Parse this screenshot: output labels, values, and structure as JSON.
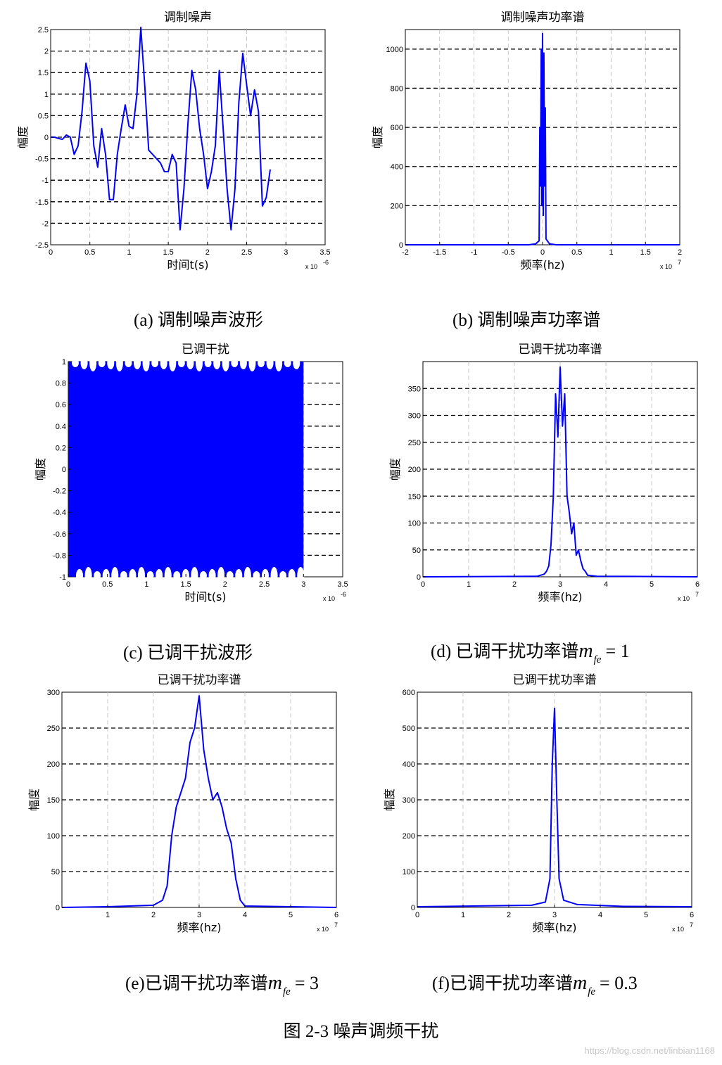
{
  "chart_data": [
    {
      "id": "a",
      "type": "line",
      "title": "调制噪声",
      "xlabel": "时间t(s)",
      "ylabel": "幅度",
      "x_exponent_label": "x 10",
      "x_exponent_power": "-6",
      "xlim": [
        0,
        3.5
      ],
      "ylim": [
        -2.5,
        2.5
      ],
      "xticks": [
        0,
        0.5,
        1,
        1.5,
        2,
        2.5,
        3,
        3.5
      ],
      "yticks": [
        -2.5,
        -2,
        -1.5,
        -1,
        -0.5,
        0,
        0.5,
        1,
        1.5,
        2,
        2.5
      ],
      "grid": true,
      "series": [
        {
          "color": "#0000ff",
          "x": [
            0,
            0.05,
            0.1,
            0.15,
            0.2,
            0.25,
            0.3,
            0.35,
            0.4,
            0.45,
            0.5,
            0.55,
            0.6,
            0.65,
            0.7,
            0.75,
            0.8,
            0.85,
            0.9,
            0.95,
            1.0,
            1.05,
            1.1,
            1.15,
            1.2,
            1.25,
            1.3,
            1.35,
            1.4,
            1.45,
            1.5,
            1.55,
            1.6,
            1.65,
            1.7,
            1.75,
            1.8,
            1.85,
            1.9,
            1.95,
            2.0,
            2.05,
            2.1,
            2.15,
            2.2,
            2.25,
            2.3,
            2.35,
            2.4,
            2.45,
            2.5,
            2.55,
            2.6,
            2.65,
            2.7,
            2.75,
            2.8,
            2.85,
            2.9,
            2.95,
            3.0
          ],
          "y": [
            0,
            0,
            -0.03,
            -0.05,
            0.05,
            0.0,
            -0.4,
            -0.2,
            0.6,
            1.72,
            1.3,
            -0.2,
            -0.7,
            0.2,
            -0.4,
            -1.45,
            -1.45,
            -0.4,
            0.2,
            0.75,
            0.25,
            0.2,
            1.0,
            2.55,
            1.2,
            -0.3,
            -0.4,
            -0.5,
            -0.6,
            -0.8,
            -0.8,
            -0.4,
            -0.6,
            -2.15,
            -1.2,
            0.3,
            1.55,
            1.1,
            0.2,
            -0.4,
            -1.2,
            -0.8,
            -0.2,
            1.55,
            0.2,
            -1.2,
            -2.15,
            -1.2,
            0.8,
            1.95,
            1.2,
            0.5,
            1.1,
            0.6,
            -1.6,
            -1.4,
            -0.75,
            null,
            null,
            null,
            null
          ]
        }
      ]
    },
    {
      "id": "b",
      "type": "line",
      "title": "调制噪声功率谱",
      "xlabel": "频率(hz)",
      "ylabel": "幅度",
      "x_exponent_label": "x 10",
      "x_exponent_power": "7",
      "xlim": [
        -2,
        2
      ],
      "ylim": [
        0,
        1100
      ],
      "xticks": [
        -2,
        -1.5,
        -1,
        -0.5,
        0,
        0.5,
        1,
        1.5,
        2
      ],
      "yticks": [
        0,
        200,
        400,
        600,
        800,
        1000
      ],
      "grid": true,
      "series": [
        {
          "color": "#0000ff",
          "x": [
            -2,
            -0.2,
            -0.1,
            -0.05,
            -0.04,
            -0.03,
            -0.02,
            -0.01,
            0,
            0.01,
            0.02,
            0.03,
            0.04,
            0.05,
            0.1,
            0.2,
            2
          ],
          "y": [
            0,
            0,
            5,
            20,
            600,
            300,
            1000,
            200,
            1080,
            150,
            980,
            300,
            700,
            30,
            5,
            0,
            0
          ]
        }
      ]
    },
    {
      "id": "c",
      "type": "area",
      "title": "已调干扰",
      "xlabel": "时间t(s)",
      "ylabel": "幅度",
      "x_exponent_label": "x 10",
      "x_exponent_power": "-6",
      "xlim": [
        0,
        3.5
      ],
      "ylim": [
        -1,
        1
      ],
      "xticks": [
        0,
        0.5,
        1,
        1.5,
        2,
        2.5,
        3,
        3.5
      ],
      "yticks": [
        -1,
        -0.8,
        -0.6,
        -0.4,
        -0.2,
        0,
        0.2,
        0.4,
        0.6,
        0.8,
        1
      ],
      "grid": true,
      "series": [
        {
          "color": "#0000ff",
          "x": [
            0,
            3
          ],
          "y_max": [
            1,
            1
          ],
          "y_min": [
            -1,
            -1
          ]
        }
      ]
    },
    {
      "id": "d",
      "type": "line",
      "title": "已调干扰功率谱",
      "xlabel": "频率(hz)",
      "ylabel": "幅度",
      "x_exponent_label": "x 10",
      "x_exponent_power": "7",
      "xlim": [
        0,
        6
      ],
      "ylim": [
        0,
        400
      ],
      "xticks": [
        0,
        1,
        2,
        3,
        4,
        5,
        6
      ],
      "yticks": [
        0,
        50,
        100,
        150,
        200,
        250,
        300,
        350
      ],
      "grid": true,
      "series": [
        {
          "color": "#0000ff",
          "x": [
            0,
            2.5,
            2.65,
            2.7,
            2.75,
            2.8,
            2.85,
            2.9,
            2.95,
            3.0,
            3.05,
            3.1,
            3.15,
            3.2,
            3.25,
            3.3,
            3.35,
            3.4,
            3.45,
            3.5,
            3.55,
            3.6,
            3.8,
            6
          ],
          "y": [
            0,
            1,
            5,
            10,
            20,
            60,
            150,
            340,
            260,
            390,
            280,
            340,
            150,
            120,
            80,
            100,
            40,
            50,
            30,
            15,
            10,
            3,
            1,
            0
          ]
        }
      ]
    },
    {
      "id": "e",
      "type": "line",
      "title": "已调干扰功率谱",
      "xlabel": "频率(hz)",
      "ylabel": "幅度",
      "x_exponent_label": "x 10",
      "x_exponent_power": "7",
      "xlim": [
        0,
        6
      ],
      "ylim": [
        0,
        300
      ],
      "xticks": [
        1,
        2,
        3,
        4,
        5,
        6
      ],
      "yticks": [
        0,
        50,
        100,
        150,
        200,
        250,
        300
      ],
      "grid": true,
      "series": [
        {
          "color": "#0000ff",
          "x": [
            0,
            1,
            2,
            2.2,
            2.3,
            2.4,
            2.5,
            2.6,
            2.7,
            2.8,
            2.9,
            3.0,
            3.1,
            3.2,
            3.3,
            3.4,
            3.5,
            3.6,
            3.7,
            3.8,
            3.9,
            4.0,
            6
          ],
          "y": [
            0,
            1,
            3,
            10,
            30,
            100,
            140,
            160,
            180,
            230,
            250,
            295,
            220,
            180,
            150,
            160,
            140,
            110,
            90,
            40,
            10,
            2,
            0
          ]
        }
      ]
    },
    {
      "id": "f",
      "type": "line",
      "title": "已调干扰功率谱",
      "xlabel": "频率(hz)",
      "ylabel": "幅度",
      "x_exponent_label": "x 10",
      "x_exponent_power": "7",
      "xlim": [
        0,
        6
      ],
      "ylim": [
        0,
        600
      ],
      "xticks": [
        0,
        1,
        2,
        3,
        4,
        5,
        6
      ],
      "yticks": [
        0,
        100,
        200,
        300,
        400,
        500,
        600
      ],
      "grid": true,
      "series": [
        {
          "color": "#0000ff",
          "x": [
            0,
            2.5,
            2.8,
            2.9,
            2.95,
            3.0,
            3.05,
            3.1,
            3.2,
            3.5,
            4.5,
            6
          ],
          "y": [
            2,
            6,
            15,
            80,
            400,
            555,
            300,
            80,
            20,
            8,
            3,
            2
          ]
        }
      ]
    }
  ],
  "captions": {
    "a": "(a)  调制噪声波形",
    "b": "(b)  调制噪声功率谱",
    "c": "(c)      已调干扰波形",
    "d_text": "(d)  已调干扰功率谱",
    "e_text": "(e)已调干扰功率谱",
    "f_text": "(f)已调干扰功率谱",
    "m_symbol": "m",
    "m_sub": "fe",
    "d_eq": "= 1",
    "e_eq": "= 3",
    "f_eq": "= 0.3",
    "figure": "图 2-3  噪声调频干扰"
  },
  "watermark": "https://blog.csdn.net/linbian1168"
}
